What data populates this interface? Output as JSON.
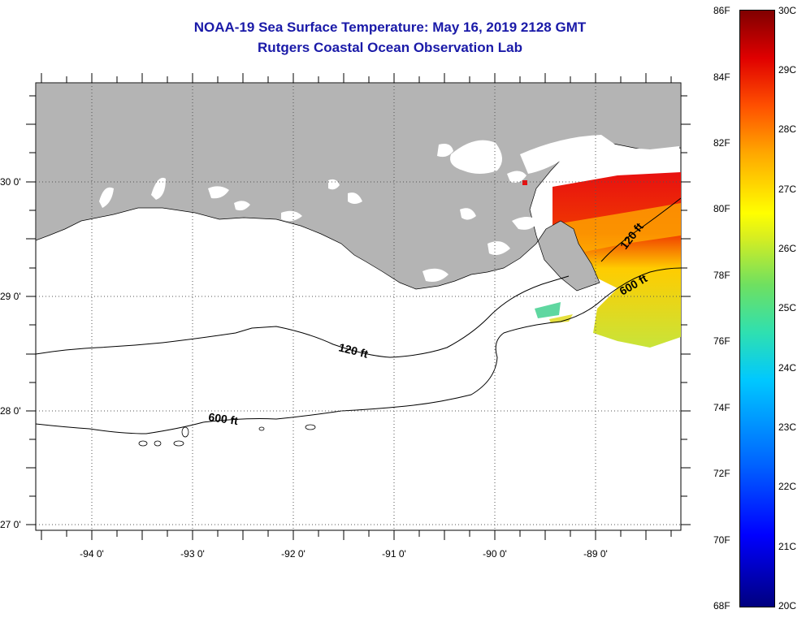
{
  "title_line1": "NOAA-19 Sea Surface Temperature:  May 16, 2019 2128 GMT",
  "title_line2": "Rutgers Coastal Ocean Observation Lab",
  "map": {
    "lat_labels": [
      "30 0'",
      "29 0'",
      "28 0'",
      "27 0'"
    ],
    "lon_labels": [
      "-94 0'",
      "-93 0'",
      "-92 0'",
      "-91 0'",
      "-90 0'",
      "-89 0'"
    ],
    "contours": [
      {
        "label": "120 ft"
      },
      {
        "label": "600 ft"
      },
      {
        "label": "120 ft"
      },
      {
        "label": "600 ft"
      }
    ],
    "land_color": "#b4b4b4",
    "cloud_color": "#ffffff"
  },
  "colorbar": {
    "fahrenheit": [
      "86F",
      "84F",
      "82F",
      "80F",
      "78F",
      "76F",
      "74F",
      "72F",
      "70F",
      "68F"
    ],
    "celsius": [
      "30C",
      "29C",
      "28C",
      "27C",
      "26C",
      "25C",
      "24C",
      "23C",
      "22C",
      "21C",
      "20C"
    ],
    "colors": [
      "#00007f",
      "#0000ff",
      "#0064ff",
      "#00c8ff",
      "#6fe060",
      "#ffff00",
      "#ffa800",
      "#ff5000",
      "#e00000",
      "#800000"
    ]
  }
}
